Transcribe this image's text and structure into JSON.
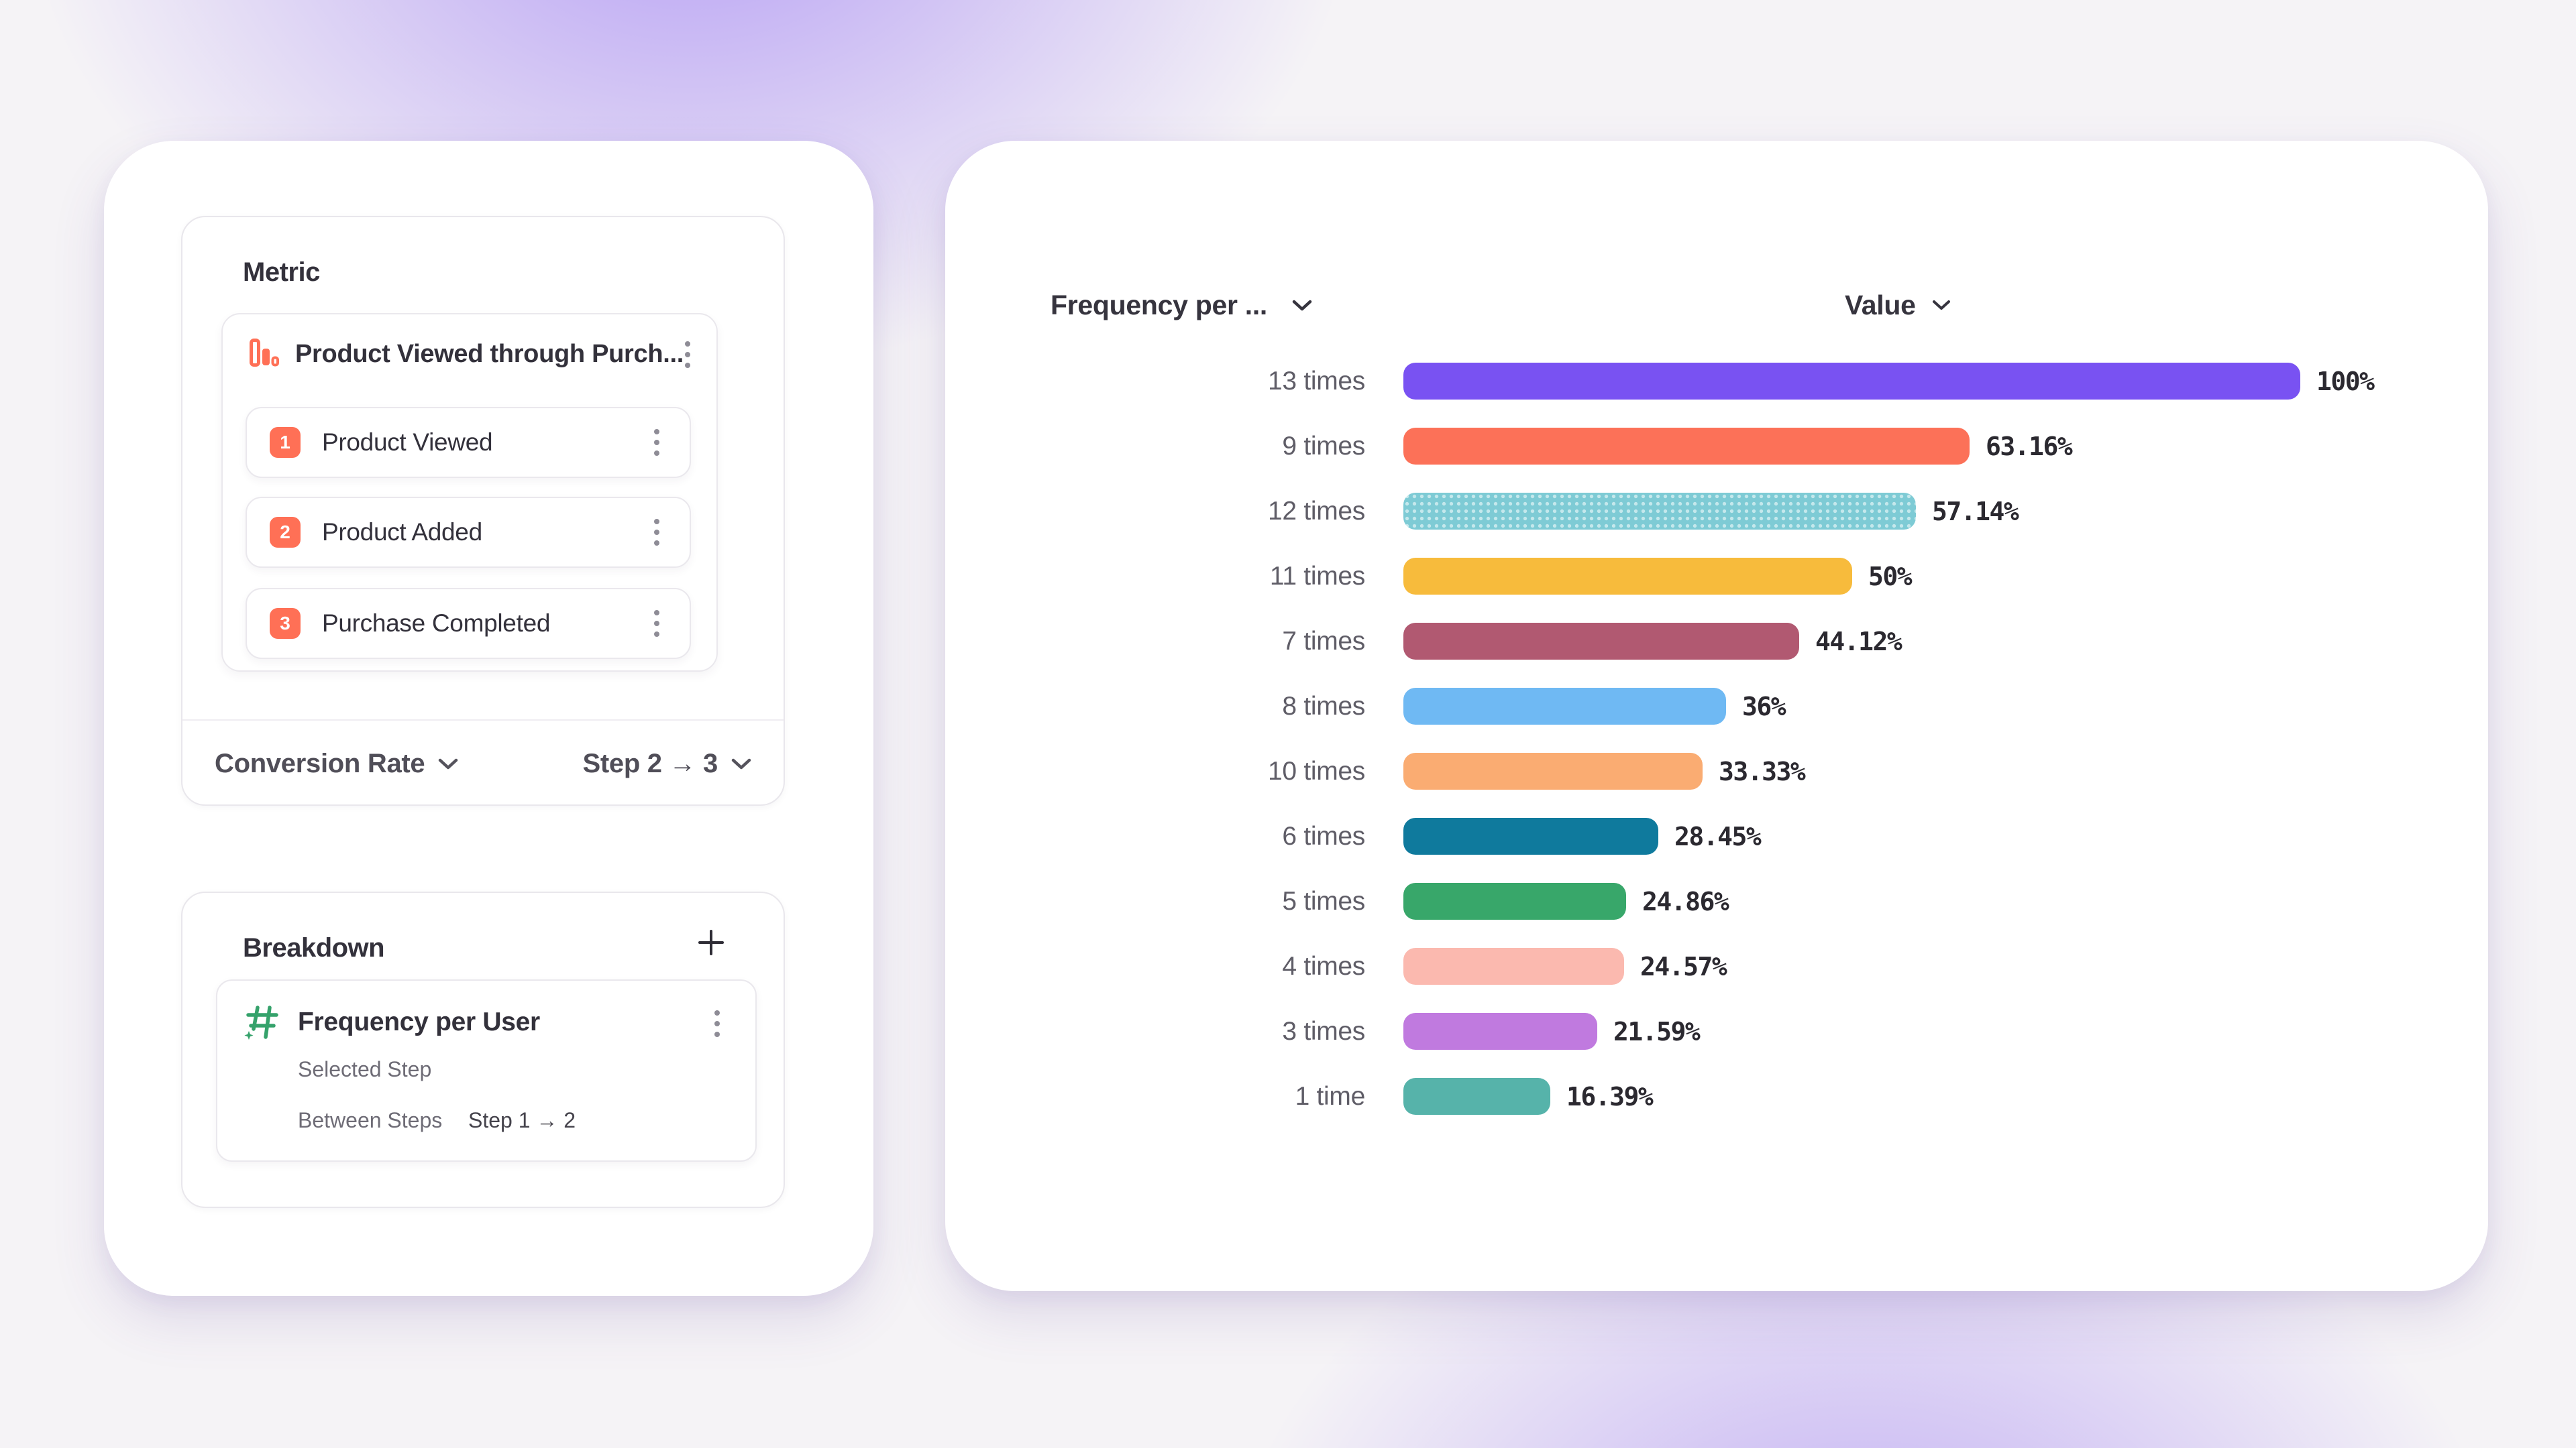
{
  "background": {
    "base": "#F5F3F6",
    "glow_color": "#7C52F0"
  },
  "left_panel": {
    "metric": {
      "label": "Metric",
      "funnel": {
        "title": "Product Viewed through Purch...",
        "accent_color": "#FF7056",
        "steps": [
          {
            "number": "1",
            "label": "Product Viewed"
          },
          {
            "number": "2",
            "label": "Product Added"
          },
          {
            "number": "3",
            "label": "Purchase Completed"
          }
        ]
      },
      "footer": {
        "measure_label": "Conversion Rate",
        "step_range_label": "Step 2 → 3"
      }
    },
    "breakdown": {
      "label": "Breakdown",
      "add_button": "+",
      "item": {
        "icon_color": "#35A26B",
        "title": "Frequency per User",
        "selected_step_label": "Selected Step",
        "between_steps_label": "Between Steps",
        "between_steps_value": "Step 1 → 2"
      }
    }
  },
  "chart_panel": {
    "column1_header": "Frequency per ...",
    "column2_header": "Value"
  },
  "chart_data": {
    "type": "bar",
    "orientation": "horizontal",
    "column_headers": [
      "Frequency per ...",
      "Value"
    ],
    "categories": [
      "13 times",
      "9 times",
      "12 times",
      "11 times",
      "7 times",
      "8 times",
      "10 times",
      "6 times",
      "5 times",
      "4 times",
      "3 times",
      "1 time"
    ],
    "values": [
      100,
      63.16,
      57.14,
      50,
      44.12,
      36,
      33.33,
      28.45,
      24.86,
      24.57,
      21.59,
      16.39
    ],
    "value_labels": [
      "100%",
      "63.16%",
      "57.14%",
      "50%",
      "44.12%",
      "36%",
      "33.33%",
      "28.45%",
      "24.86%",
      "24.57%",
      "21.59%",
      "16.39%"
    ],
    "bar_colors": [
      "#7952F2",
      "#FC7158",
      "#7ECBD5",
      "#F7BB3C",
      "#B15971",
      "#6FB9F3",
      "#FAAC72",
      "#0F7A9D",
      "#38A76A",
      "#FBB9AF",
      "#C07ADF",
      "#56B3AA"
    ],
    "bar_patterns": [
      null,
      null,
      "dotted",
      null,
      null,
      null,
      null,
      null,
      null,
      null,
      null,
      null
    ],
    "xlim": [
      0,
      100
    ],
    "grid": false,
    "legend": false
  }
}
